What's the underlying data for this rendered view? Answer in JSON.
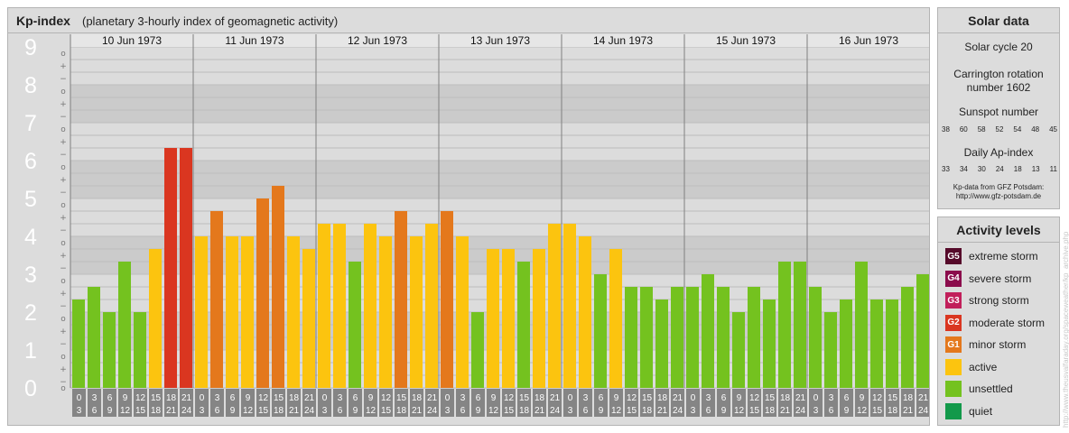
{
  "header": {
    "title": "Kp-index",
    "subtitle": "(planetary 3-hourly index of geomagnetic activity)"
  },
  "chart_data": {
    "type": "bar",
    "ylim": [
      0,
      9
    ],
    "yticks": [
      "0",
      "1",
      "2",
      "3",
      "4",
      "5",
      "6",
      "7",
      "8",
      "9"
    ],
    "minor_tick_labels": [
      "−",
      "+",
      "o"
    ],
    "days": [
      "10 Jun 1973",
      "11 Jun 1973",
      "12 Jun 1973",
      "13 Jun 1973",
      "14 Jun 1973",
      "15 Jun 1973",
      "16 Jun 1973"
    ],
    "interval_labels": [
      [
        "0",
        "3"
      ],
      [
        "3",
        "6"
      ],
      [
        "6",
        "9"
      ],
      [
        "9",
        "12"
      ],
      [
        "12",
        "15"
      ],
      [
        "15",
        "18"
      ],
      [
        "18",
        "21"
      ],
      [
        "21",
        "24"
      ]
    ],
    "values": [
      [
        2.333,
        2.667,
        2.0,
        3.333,
        2.0,
        3.667,
        6.333,
        6.333
      ],
      [
        4.0,
        4.667,
        4.0,
        4.0,
        5.0,
        5.333,
        4.0,
        3.667
      ],
      [
        4.333,
        4.333,
        3.333,
        4.333,
        4.0,
        4.667,
        4.0,
        4.333
      ],
      [
        4.667,
        4.0,
        2.0,
        3.667,
        3.667,
        3.333,
        3.667,
        4.333
      ],
      [
        4.333,
        4.0,
        3.0,
        3.667,
        2.667,
        2.667,
        2.333,
        2.667
      ],
      [
        2.667,
        3.0,
        2.667,
        2.0,
        2.667,
        2.333,
        3.333,
        3.333
      ],
      [
        2.667,
        2.0,
        2.333,
        3.333,
        2.333,
        2.333,
        2.667,
        3.0
      ]
    ],
    "colors": {
      "quiet": "#12994a",
      "unsettled": "#74c21f",
      "active": "#fcc40f",
      "minor_storm": "#e4781c",
      "moderate_storm": "#da3620",
      "strong_storm": "#c11f5a",
      "severe_storm": "#8b0c4c",
      "extreme_storm": "#560a2a"
    }
  },
  "solar": {
    "title": "Solar data",
    "cycle": "Solar cycle 20",
    "carrington_line1": "Carrington rotation",
    "carrington_line2": "number 1602",
    "sunspot_title": "Sunspot number",
    "sunspot_values": [
      "38",
      "60",
      "58",
      "52",
      "54",
      "48",
      "45"
    ],
    "ap_title": "Daily Ap-index",
    "ap_values": [
      "33",
      "34",
      "30",
      "24",
      "18",
      "13",
      "11"
    ],
    "credit_line1": "Kp-data from GFZ Potsdam:",
    "credit_line2": "http://www.gfz-potsdam.de"
  },
  "legend": {
    "title": "Activity levels",
    "items": [
      {
        "badge": "G5",
        "label": "extreme storm",
        "color": "#560a2a"
      },
      {
        "badge": "G4",
        "label": "severe storm",
        "color": "#8b0c4c"
      },
      {
        "badge": "G3",
        "label": "strong storm",
        "color": "#c11f5a"
      },
      {
        "badge": "G2",
        "label": "moderate storm",
        "color": "#da3620"
      },
      {
        "badge": "G1",
        "label": "minor storm",
        "color": "#e4781c"
      },
      {
        "badge": "",
        "label": "active",
        "color": "#fcc40f"
      },
      {
        "badge": "",
        "label": "unsettled",
        "color": "#74c21f"
      },
      {
        "badge": "",
        "label": "quiet",
        "color": "#12994a"
      }
    ]
  },
  "watermark": "http://www.theusvalfaraday.org/spaceweather/kp_archive.php"
}
